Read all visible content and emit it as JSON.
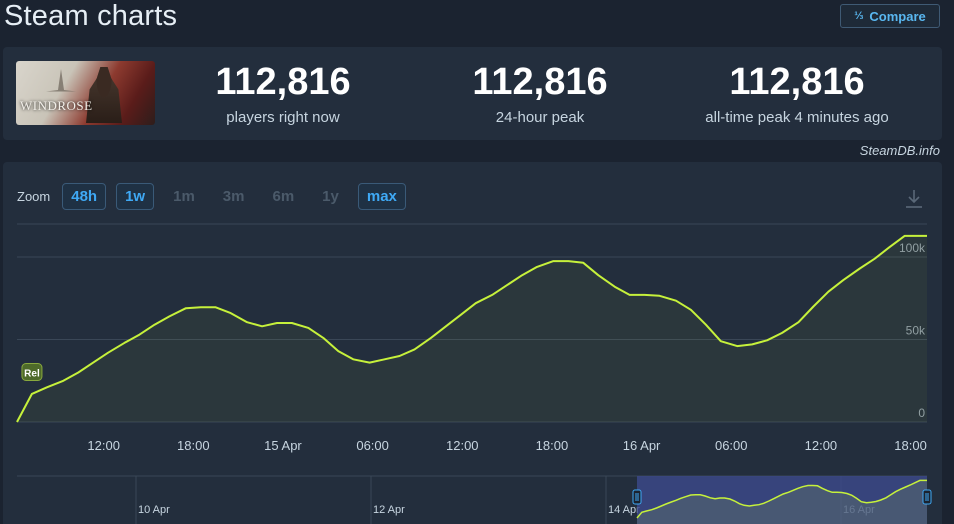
{
  "header": {
    "title": "Steam charts",
    "compare_label": "Compare",
    "compare_icon": "sort-fraction-icon"
  },
  "game": {
    "logo_text": "WINDROSE"
  },
  "stats": [
    {
      "value": "112,816",
      "label": "players right now"
    },
    {
      "value": "112,816",
      "label": "24-hour peak"
    },
    {
      "value": "112,816",
      "label": "all-time peak 4 minutes ago"
    }
  ],
  "credit": "SteamDB.info",
  "zoom": {
    "label": "Zoom",
    "options": [
      {
        "label": "48h",
        "active": true
      },
      {
        "label": "1w",
        "active": true
      },
      {
        "label": "1m",
        "active": false
      },
      {
        "label": "3m",
        "active": false
      },
      {
        "label": "6m",
        "active": false
      },
      {
        "label": "1y",
        "active": false
      },
      {
        "label": "max",
        "active": true
      }
    ]
  },
  "colors": {
    "line": "#c6f13b",
    "accent": "#3fa9f5",
    "background": "#1b2330",
    "panel": "#232e3d",
    "navigator_selection": "#3c4a8c"
  },
  "chart_data": {
    "type": "line",
    "title": "",
    "xlabel": "",
    "ylabel": "",
    "ylim": [
      0,
      120000
    ],
    "y_ticks": [
      {
        "value": 0,
        "label": "0"
      },
      {
        "value": 50000,
        "label": "50k"
      },
      {
        "value": 100000,
        "label": "100k"
      }
    ],
    "x_ticks": [
      {
        "hours": 12,
        "label": "12:00"
      },
      {
        "hours": 18,
        "label": "18:00"
      },
      {
        "hours": 24,
        "label": "15 Apr"
      },
      {
        "hours": 30,
        "label": "06:00"
      },
      {
        "hours": 36,
        "label": "12:00"
      },
      {
        "hours": 42,
        "label": "18:00"
      },
      {
        "hours": 48,
        "label": "16 Apr"
      },
      {
        "hours": 54,
        "label": "06:00"
      },
      {
        "hours": 60,
        "label": "12:00"
      },
      {
        "hours": 66,
        "label": "18:00"
      }
    ],
    "x_range_hours": [
      6.2,
      67.1
    ],
    "grid": true,
    "annotation": {
      "label": "Rel",
      "hours": 7.2,
      "value": 30000
    },
    "series": [
      {
        "x": [
          6.2,
          7.2,
          8.2,
          9.3,
          10.3,
          11.3,
          12.3,
          13.4,
          14.4,
          15.4,
          16.4,
          17.5,
          18.5,
          19.5,
          20.5,
          21.6,
          22.6,
          23.6,
          24.6,
          25.7,
          26.7,
          27.7,
          28.7,
          29.8,
          30.8,
          31.8,
          32.8,
          33.9,
          34.9,
          35.9,
          36.9,
          38.0,
          39.0,
          40.0,
          41.0,
          42.1,
          43.1,
          44.1,
          45.1,
          46.2,
          47.2,
          48.2,
          49.2,
          50.3,
          51.3,
          52.3,
          53.3,
          54.4,
          55.4,
          56.4,
          57.4,
          58.5,
          59.5,
          60.5,
          61.5,
          62.6,
          63.6,
          64.6,
          65.6,
          66.7,
          67.1
        ],
        "y": [
          0,
          17000,
          21000,
          25000,
          30000,
          36000,
          42000,
          48000,
          53000,
          59000,
          64000,
          69000,
          69500,
          69500,
          66000,
          60500,
          58000,
          60000,
          60000,
          57000,
          51000,
          43000,
          38000,
          36000,
          38000,
          40000,
          44000,
          51000,
          58000,
          65000,
          72000,
          77000,
          83000,
          89000,
          94000,
          97500,
          97500,
          96500,
          89000,
          82000,
          77000,
          77000,
          76500,
          73500,
          68000,
          59000,
          49000,
          46000,
          47000,
          49500,
          54000,
          60500,
          70000,
          79000,
          86000,
          93000,
          99000,
          106000,
          112816,
          112816,
          112816
        ]
      }
    ],
    "navigator": {
      "labels": [
        {
          "label": "10 Apr"
        },
        {
          "label": "12 Apr"
        },
        {
          "label": "14 Apr"
        },
        {
          "label": "16 Apr"
        }
      ]
    }
  }
}
